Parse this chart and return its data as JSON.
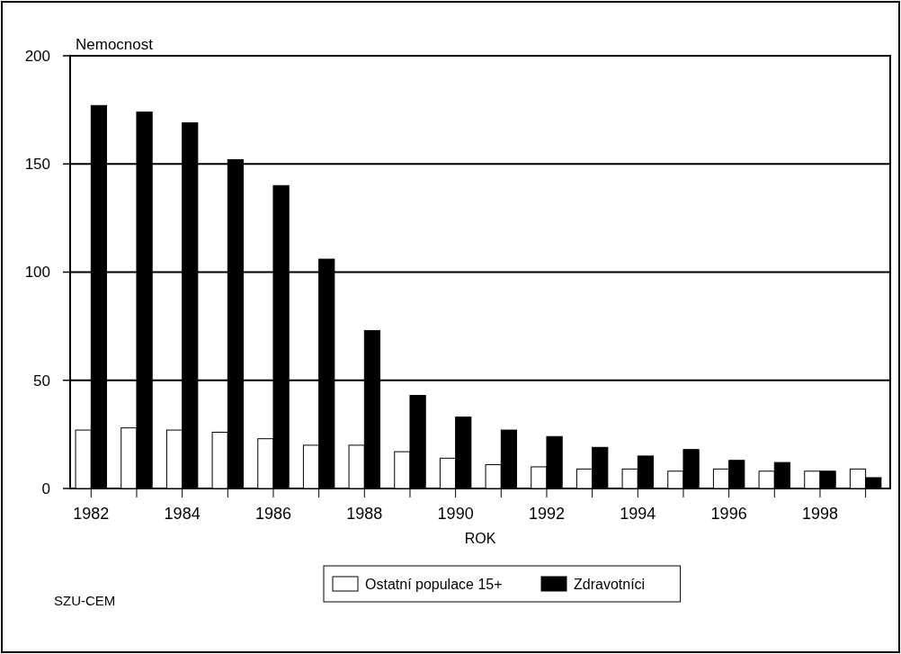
{
  "chart_data": {
    "type": "bar",
    "ylabel": "Nemocnost",
    "xlabel": "ROK",
    "categories": [
      "1982",
      null,
      "1984",
      null,
      "1986",
      null,
      "1988",
      null,
      "1990",
      null,
      "1992",
      null,
      "1994",
      null,
      "1996",
      null,
      "1998",
      null
    ],
    "series": [
      {
        "name": "Ostatní populace 15+",
        "color": "#ffffff",
        "values": [
          27,
          28,
          27,
          26,
          23,
          20,
          20,
          17,
          14,
          11,
          10,
          9,
          9,
          8,
          9,
          8,
          8,
          9
        ]
      },
      {
        "name": "Zdravotníci",
        "color": "#000000",
        "values": [
          177,
          174,
          169,
          152,
          140,
          106,
          73,
          43,
          33,
          27,
          24,
          19,
          15,
          18,
          13,
          12,
          8,
          5
        ]
      }
    ],
    "ylim": [
      0,
      200
    ],
    "yticks": [
      0,
      50,
      100,
      150,
      200
    ],
    "grid": "y",
    "legend": "bottom",
    "annotations": [
      "SZU-CEM"
    ]
  }
}
